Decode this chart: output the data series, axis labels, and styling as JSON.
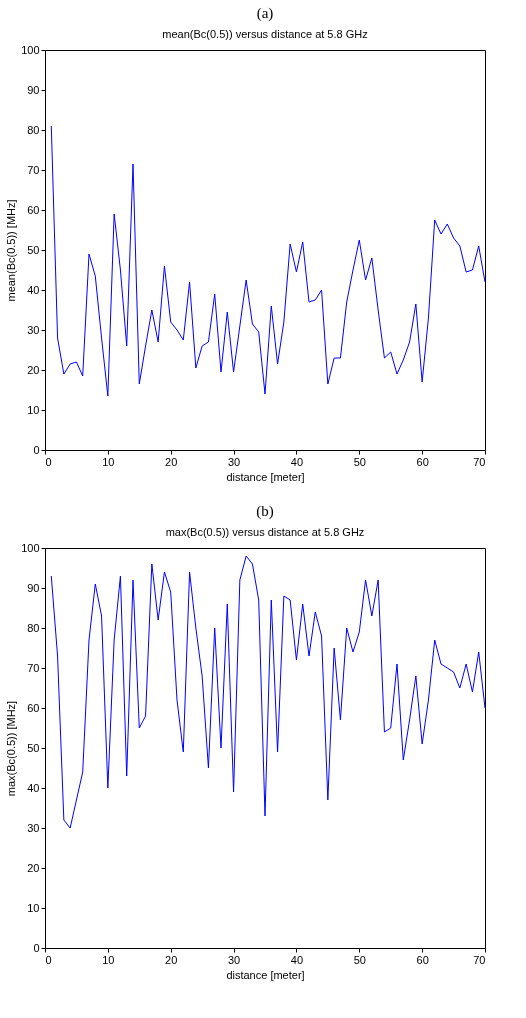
{
  "chart_data": [
    {
      "type": "line",
      "title": "(a)",
      "subtitle": "mean(Bc(0.5)) versus distance at 5.8 GHz",
      "xlabel": "distance [meter]",
      "ylabel": "mean(Bc(0.5)) [MHz]",
      "x": [
        1,
        2,
        3,
        4,
        5,
        6,
        7,
        8,
        9,
        10,
        11,
        12,
        13,
        14,
        15,
        16,
        17,
        18,
        19,
        20,
        21,
        22,
        23,
        24,
        25,
        26,
        27,
        28,
        29,
        30,
        31,
        32,
        33,
        34,
        35,
        36,
        37,
        38,
        39,
        40,
        41,
        42,
        43,
        44,
        45,
        46,
        47,
        48,
        49,
        50,
        51,
        52,
        53,
        54,
        55,
        56,
        57,
        58,
        59,
        60,
        61,
        62,
        63,
        64,
        65,
        66,
        67,
        68,
        69,
        70
      ],
      "series": [
        {
          "color": "#0000ff",
          "values": [
            81,
            28,
            19,
            21.5,
            22,
            18.5,
            49,
            43.5,
            28,
            13.5,
            59,
            45,
            26,
            71.5,
            16.5,
            26,
            35,
            27,
            46,
            32,
            30,
            27.5,
            42,
            20.5,
            26,
            27,
            39,
            19.5,
            34.5,
            19.5,
            31,
            42.5,
            31.5,
            29.5,
            14,
            36,
            21.5,
            32,
            51.5,
            44.5,
            52,
            37,
            37.5,
            40,
            16.5,
            23,
            23,
            37,
            45,
            52.5,
            42.5,
            48,
            35,
            23,
            24.5,
            19,
            22.5,
            27,
            36.5,
            17,
            33,
            57.5,
            54,
            56.5,
            53,
            51,
            44.5,
            45,
            51,
            42
          ]
        }
      ],
      "xlim": [
        0,
        70
      ],
      "ylim": [
        0,
        100
      ],
      "xticks": [
        0,
        10,
        20,
        30,
        40,
        50,
        60,
        70
      ],
      "yticks": [
        0,
        10,
        20,
        30,
        40,
        50,
        60,
        70,
        80,
        90,
        100
      ]
    },
    {
      "type": "line",
      "title": "(b)",
      "subtitle": "max(Bc(0.5)) versus distance at 5.8 GHz",
      "xlabel": "distance [meter]",
      "ylabel": "max(Bc(0.5)) [MHz]",
      "x": [
        1,
        2,
        3,
        4,
        5,
        6,
        7,
        8,
        9,
        10,
        11,
        12,
        13,
        14,
        15,
        16,
        17,
        18,
        19,
        20,
        21,
        22,
        23,
        24,
        25,
        26,
        27,
        28,
        29,
        30,
        31,
        32,
        33,
        34,
        35,
        36,
        37,
        38,
        39,
        40,
        41,
        42,
        43,
        44,
        45,
        46,
        47,
        48,
        49,
        50,
        51,
        52,
        53,
        54,
        55,
        56,
        57,
        58,
        59,
        60,
        61,
        62,
        63,
        64,
        65,
        66,
        67,
        68,
        69,
        70
      ],
      "series": [
        {
          "color": "#0000ff",
          "values": [
            93,
            73,
            32,
            30,
            37,
            44,
            77,
            91,
            83,
            40,
            77,
            93,
            43,
            92,
            55,
            58,
            96,
            82,
            94,
            89,
            62,
            49,
            94,
            80,
            68,
            45,
            80,
            50,
            86,
            39,
            92,
            98,
            96,
            87,
            33,
            87,
            49,
            88,
            87,
            72,
            86,
            73,
            84,
            78,
            37,
            75,
            57,
            80,
            74,
            79,
            92,
            83,
            92,
            54,
            55,
            71,
            47,
            57,
            68,
            51,
            62,
            77,
            71,
            70,
            69,
            65,
            71,
            64,
            74,
            60
          ]
        }
      ],
      "xlim": [
        0,
        70
      ],
      "ylim": [
        0,
        100
      ],
      "xticks": [
        0,
        10,
        20,
        30,
        40,
        50,
        60,
        70
      ],
      "yticks": [
        0,
        10,
        20,
        30,
        40,
        50,
        60,
        70,
        80,
        90,
        100
      ]
    }
  ]
}
